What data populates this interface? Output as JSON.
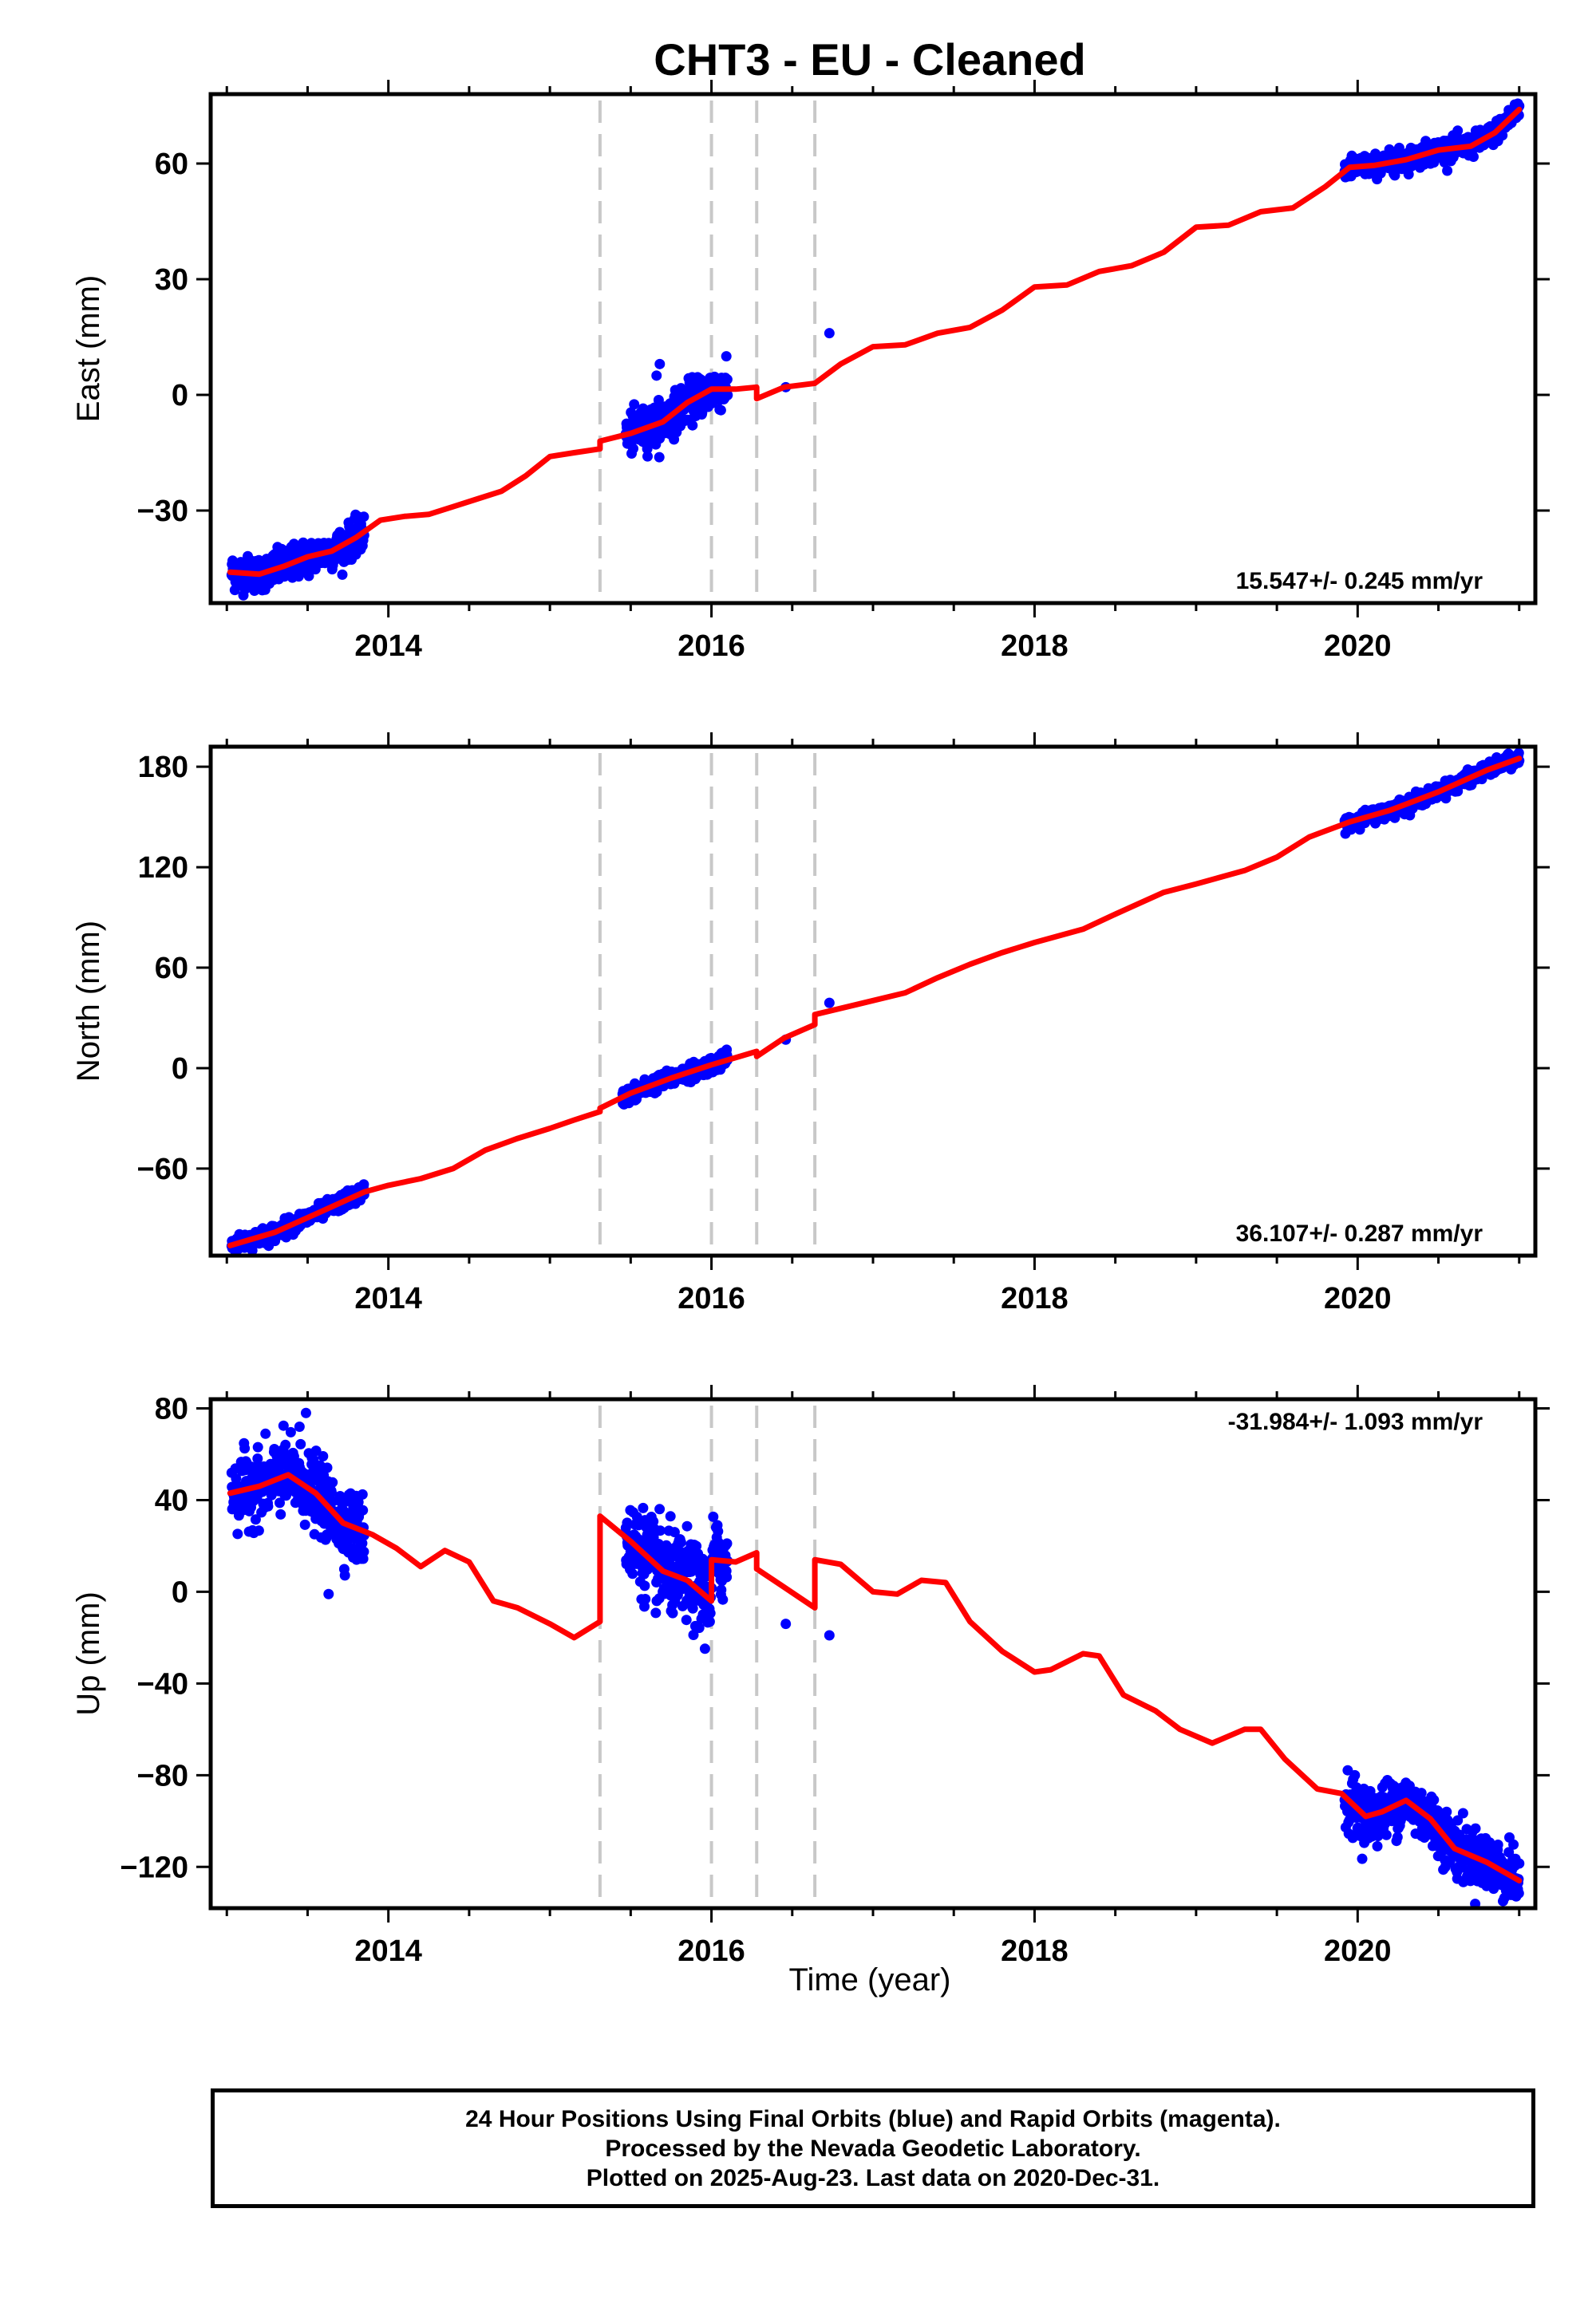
{
  "title": "CHT3  - EU - Cleaned",
  "xlabel": "Time (year)",
  "footer": {
    "line1": "24 Hour Positions Using Final Orbits (blue) and Rapid Orbits (magenta).",
    "line2": "Processed by the Nevada Geodetic Laboratory.",
    "line3": "Plotted on 2025-Aug-23. Last data on 2020-Dec-31."
  },
  "colors": {
    "data": "#0000ff",
    "model": "#ff0000",
    "breaks": "#c8c8c8",
    "axes": "#000000"
  },
  "chart_data": [
    {
      "type": "scatter",
      "ylabel": "East (mm)",
      "rate_label": "15.547+/- 0.245 mm/yr",
      "xlim": [
        2012.9,
        2021.1
      ],
      "ylim": [
        -54,
        78
      ],
      "xticks": [
        2014,
        2016,
        2018,
        2020
      ],
      "yticks": [
        -30,
        0,
        30,
        60
      ],
      "breaks": [
        2015.31,
        2016.0,
        2016.28,
        2016.64
      ],
      "series": [
        {
          "role": "observations",
          "segments": [
            {
              "x_start": 2013.03,
              "x_end": 2013.85,
              "n": 420,
              "noise": 2.2
            },
            {
              "x_start": 2015.47,
              "x_end": 2016.1,
              "n": 320,
              "noise": 2.6
            },
            {
              "x_start": 2019.92,
              "x_end": 2021.0,
              "n": 520,
              "noise": 1.4
            }
          ],
          "extra_points": [
            {
              "x": 2015.68,
              "y": 8
            },
            {
              "x": 2015.66,
              "y": 5
            },
            {
              "x": 2016.46,
              "y": 2
            },
            {
              "x": 2016.73,
              "y": 16
            }
          ]
        },
        {
          "role": "model",
          "x": [
            2013.02,
            2013.2,
            2013.35,
            2013.5,
            2013.65,
            2013.8,
            2013.95,
            2014.1,
            2014.25,
            2014.4,
            2014.55,
            2014.7,
            2014.85,
            2015.0,
            2015.15,
            2015.31,
            2015.31,
            2015.5,
            2015.7,
            2015.85,
            2016.0,
            2016.0,
            2016.15,
            2016.28,
            2016.28,
            2016.45,
            2016.64,
            2016.64,
            2016.8,
            2017.0,
            2017.2,
            2017.4,
            2017.6,
            2017.8,
            2018.0,
            2018.2,
            2018.4,
            2018.6,
            2018.8,
            2019.0,
            2019.2,
            2019.4,
            2019.6,
            2019.8,
            2019.95,
            2020.1,
            2020.3,
            2020.5,
            2020.7,
            2020.85,
            2021.0
          ],
          "y": [
            -46,
            -46.5,
            -44.5,
            -42,
            -40.5,
            -37,
            -32.5,
            -31.5,
            -31,
            -29,
            -27,
            -25,
            -21,
            -16,
            -15,
            -14,
            -12,
            -10,
            -7,
            -2,
            1.5,
            1.5,
            1.5,
            2,
            -1,
            2,
            3,
            3,
            8,
            12.5,
            13,
            16,
            17.5,
            22,
            28,
            28.5,
            32,
            33.5,
            37,
            43.5,
            44,
            47.5,
            48.5,
            54,
            59,
            59.5,
            61,
            63.5,
            64.5,
            68,
            74
          ]
        }
      ]
    },
    {
      "type": "scatter",
      "ylabel": "North (mm)",
      "rate_label": "36.107+/- 0.287 mm/yr",
      "xlim": [
        2012.9,
        2021.1
      ],
      "ylim": [
        -112,
        192
      ],
      "xticks": [
        2014,
        2016,
        2018,
        2020
      ],
      "yticks": [
        -60,
        0,
        60,
        120,
        180
      ],
      "breaks": [
        2015.31,
        2016.0,
        2016.28,
        2016.64
      ],
      "series": [
        {
          "role": "observations",
          "segments": [
            {
              "x_start": 2013.03,
              "x_end": 2013.85,
              "n": 380,
              "noise": 2.4
            },
            {
              "x_start": 2015.45,
              "x_end": 2016.1,
              "n": 320,
              "noise": 2.4
            },
            {
              "x_start": 2019.92,
              "x_end": 2021.0,
              "n": 520,
              "noise": 2.0
            }
          ],
          "extra_points": [
            {
              "x": 2016.46,
              "y": 17
            },
            {
              "x": 2016.73,
              "y": 39
            }
          ]
        },
        {
          "role": "model",
          "x": [
            2013.02,
            2013.3,
            2013.6,
            2013.85,
            2014.0,
            2014.2,
            2014.4,
            2014.6,
            2014.8,
            2015.0,
            2015.15,
            2015.31,
            2015.31,
            2015.5,
            2015.75,
            2016.0,
            2016.0,
            2016.28,
            2016.28,
            2016.45,
            2016.64,
            2016.64,
            2016.9,
            2017.2,
            2017.4,
            2017.6,
            2017.8,
            2018.0,
            2018.3,
            2018.5,
            2018.8,
            2019.0,
            2019.3,
            2019.5,
            2019.7,
            2019.95,
            2020.2,
            2020.5,
            2020.8,
            2021.0
          ],
          "y": [
            -106,
            -98,
            -85,
            -74,
            -70,
            -66,
            -60,
            -49,
            -42,
            -36,
            -31,
            -26,
            -24,
            -15,
            -6,
            2,
            2,
            10,
            7,
            18,
            26,
            32,
            38,
            45,
            54,
            62,
            69,
            75,
            83,
            92,
            105,
            110,
            118,
            126,
            138,
            147,
            154,
            165,
            178,
            185
          ]
        }
      ]
    },
    {
      "type": "scatter",
      "ylabel": "Up (mm)",
      "rate_label": "-31.984+/- 1.093 mm/yr",
      "xlim": [
        2012.9,
        2021.1
      ],
      "ylim": [
        -138,
        84
      ],
      "xticks": [
        2014,
        2016,
        2018,
        2020
      ],
      "yticks": [
        -120,
        -80,
        -40,
        0,
        40,
        80
      ],
      "breaks": [
        2015.31,
        2016.0,
        2016.28,
        2016.64
      ],
      "series": [
        {
          "role": "observations",
          "segments": [
            {
              "x_start": 2013.03,
              "x_end": 2013.85,
              "n": 420,
              "noise": 7.5
            },
            {
              "x_start": 2015.47,
              "x_end": 2016.1,
              "n": 320,
              "noise": 9.0
            },
            {
              "x_start": 2019.92,
              "x_end": 2021.0,
              "n": 520,
              "noise": 6.0
            }
          ],
          "extra_points": [
            {
              "x": 2013.49,
              "y": 78
            },
            {
              "x": 2013.45,
              "y": 72
            },
            {
              "x": 2013.63,
              "y": -1
            },
            {
              "x": 2016.46,
              "y": -14
            },
            {
              "x": 2016.73,
              "y": -19
            }
          ]
        },
        {
          "role": "model",
          "x": [
            2013.02,
            2013.2,
            2013.38,
            2013.55,
            2013.72,
            2013.9,
            2014.05,
            2014.2,
            2014.35,
            2014.5,
            2014.65,
            2014.8,
            2015.0,
            2015.15,
            2015.31,
            2015.31,
            2015.5,
            2015.7,
            2015.85,
            2016.0,
            2016.0,
            2016.15,
            2016.28,
            2016.28,
            2016.45,
            2016.64,
            2016.64,
            2016.8,
            2017.0,
            2017.15,
            2017.3,
            2017.45,
            2017.6,
            2017.8,
            2018.0,
            2018.1,
            2018.3,
            2018.4,
            2018.55,
            2018.75,
            2018.9,
            2019.1,
            2019.3,
            2019.4,
            2019.55,
            2019.75,
            2019.9,
            2020.05,
            2020.15,
            2020.3,
            2020.45,
            2020.6,
            2020.8,
            2021.0
          ],
          "y": [
            43,
            46,
            51,
            43,
            30,
            25,
            19,
            11,
            18,
            13,
            -4,
            -7,
            -14,
            -20,
            -13,
            33,
            22,
            9,
            5,
            -4,
            14,
            13,
            17,
            10,
            2,
            -7,
            14,
            12,
            0,
            -1,
            5,
            4,
            -13,
            -26,
            -35,
            -34,
            -27,
            -28,
            -45,
            -52,
            -60,
            -66,
            -60,
            -60,
            -73,
            -86,
            -88,
            -98,
            -96,
            -91,
            -99,
            -112,
            -118,
            -126
          ]
        }
      ]
    }
  ]
}
